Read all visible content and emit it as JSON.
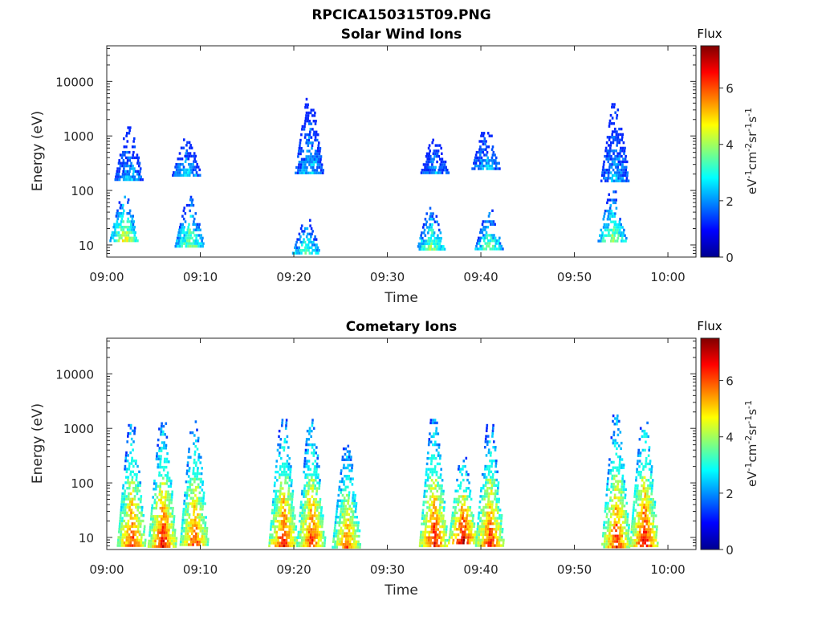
{
  "figure": {
    "filename_title": "RPCICA150315T09.PNG"
  },
  "chart_data": [
    {
      "type": "heatmap",
      "title": "Solar Wind Ions",
      "xlabel": "Time",
      "ylabel": "Energy (eV)",
      "xticks": [
        "09:00",
        "09:10",
        "09:20",
        "09:30",
        "09:40",
        "09:50",
        "10:00"
      ],
      "xlim_minutes": [
        0,
        63
      ],
      "yscale": "log",
      "yticks": [
        "10",
        "100",
        "1000",
        "10000"
      ],
      "ylim": [
        6,
        45000
      ],
      "colorbar": {
        "title": "Flux",
        "label": "eV-1cm-2sr-1s-1",
        "ticks": [
          "0",
          "2",
          "4",
          "6"
        ],
        "range": [
          0,
          7.5
        ],
        "colormap": "jet"
      },
      "clusters": [
        {
          "t": 1.8,
          "e_lo": 12,
          "e_hi": 90,
          "peak": 4.8
        },
        {
          "t": 2.3,
          "e_lo": 150,
          "e_hi": 1500,
          "peak": 2.6
        },
        {
          "t": 8.8,
          "e_lo": 10,
          "e_hi": 80,
          "peak": 4.0
        },
        {
          "t": 8.5,
          "e_lo": 200,
          "e_hi": 900,
          "peak": 2.7
        },
        {
          "t": 21.3,
          "e_lo": 7,
          "e_hi": 30,
          "peak": 3.8
        },
        {
          "t": 21.6,
          "e_lo": 200,
          "e_hi": 5000,
          "peak": 2.6
        },
        {
          "t": 34.6,
          "e_lo": 8,
          "e_hi": 50,
          "peak": 4.2
        },
        {
          "t": 35.0,
          "e_lo": 200,
          "e_hi": 1000,
          "peak": 2.3
        },
        {
          "t": 40.8,
          "e_lo": 8,
          "e_hi": 45,
          "peak": 4.0
        },
        {
          "t": 40.5,
          "e_lo": 250,
          "e_hi": 1500,
          "peak": 2.4
        },
        {
          "t": 54.0,
          "e_lo": 12,
          "e_hi": 100,
          "peak": 4.2
        },
        {
          "t": 54.3,
          "e_lo": 150,
          "e_hi": 4000,
          "peak": 2.4
        }
      ]
    },
    {
      "type": "heatmap",
      "title": "Cometary Ions",
      "xlabel": "Time",
      "ylabel": "Energy (eV)",
      "xticks": [
        "09:00",
        "09:10",
        "09:20",
        "09:30",
        "09:40",
        "09:50",
        "10:00"
      ],
      "xlim_minutes": [
        0,
        63
      ],
      "yscale": "log",
      "yticks": [
        "10",
        "100",
        "1000",
        "10000"
      ],
      "ylim": [
        6,
        45000
      ],
      "colorbar": {
        "title": "Flux",
        "label": "eV-1cm-2sr-1s-1",
        "ticks": [
          "0",
          "2",
          "4",
          "6"
        ],
        "range": [
          0,
          7.5
        ],
        "colormap": "jet"
      },
      "clusters": [
        {
          "t": 2.6,
          "e_lo": 7,
          "e_hi": 1200,
          "peak": 6.5
        },
        {
          "t": 5.9,
          "e_lo": 7,
          "e_hi": 1300,
          "peak": 6.8
        },
        {
          "t": 9.3,
          "e_lo": 7,
          "e_hi": 1400,
          "peak": 6.3
        },
        {
          "t": 18.8,
          "e_lo": 7,
          "e_hi": 1500,
          "peak": 6.6
        },
        {
          "t": 21.8,
          "e_lo": 7,
          "e_hi": 1500,
          "peak": 6.5
        },
        {
          "t": 25.6,
          "e_lo": 7,
          "e_hi": 500,
          "peak": 6.0
        },
        {
          "t": 34.9,
          "e_lo": 7,
          "e_hi": 1500,
          "peak": 6.8
        },
        {
          "t": 38.0,
          "e_lo": 8,
          "e_hi": 300,
          "peak": 7.3
        },
        {
          "t": 40.9,
          "e_lo": 7,
          "e_hi": 1200,
          "peak": 6.5
        },
        {
          "t": 54.4,
          "e_lo": 7,
          "e_hi": 1800,
          "peak": 6.5
        },
        {
          "t": 57.4,
          "e_lo": 7,
          "e_hi": 1500,
          "peak": 6.9
        }
      ]
    }
  ]
}
